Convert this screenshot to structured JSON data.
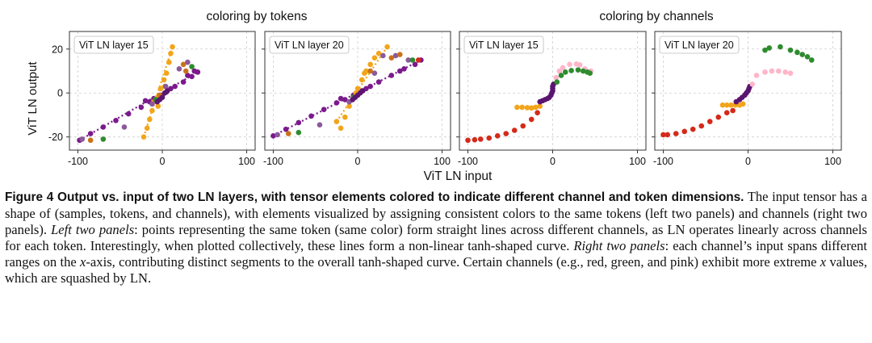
{
  "figure": {
    "group_titles": [
      "coloring by tokens",
      "coloring by channels"
    ],
    "xlabel": "ViT LN input",
    "ylabel": "ViT LN output"
  },
  "chart_data": [
    {
      "type": "scatter",
      "panel_label": "ViT LN layer 15",
      "xlim": [
        -110,
        110
      ],
      "ylim": [
        -26,
        28
      ],
      "xticks": [
        -100,
        0,
        100
      ],
      "yticks": [
        -20,
        0,
        20
      ],
      "grid": true,
      "series": [
        {
          "color": "#7b1a8c",
          "points": [
            [
              -98,
              -21.5
            ],
            [
              -85,
              -18.5
            ],
            [
              -70,
              -15.5
            ],
            [
              -55,
              -12.5
            ],
            [
              -40,
              -9.5
            ],
            [
              -25,
              -6.5
            ],
            [
              -15,
              -4
            ],
            [
              -5,
              -2
            ],
            [
              5,
              0.5
            ],
            [
              15,
              3
            ],
            [
              25,
              5
            ],
            [
              35,
              7.5
            ],
            [
              42,
              9.5
            ],
            [
              -20,
              -3.5
            ],
            [
              -10,
              -2.5
            ],
            [
              0,
              -1
            ],
            [
              10,
              2
            ],
            [
              30,
              8
            ],
            [
              38,
              10
            ]
          ]
        },
        {
          "color": "#f2a51a",
          "points": [
            [
              -18,
              -16
            ],
            [
              -15,
              -12
            ],
            [
              -12,
              -8
            ],
            [
              -10,
              -4
            ],
            [
              -6,
              -2
            ],
            [
              -2,
              2
            ],
            [
              2,
              6
            ],
            [
              5,
              9
            ],
            [
              8,
              14
            ],
            [
              10,
              18
            ],
            [
              12,
              21
            ],
            [
              -22,
              -20
            ],
            [
              -5,
              -6
            ],
            [
              3,
              3
            ]
          ]
        },
        {
          "color": "#8a5a9a",
          "points": [
            [
              -95,
              -21
            ],
            [
              -45,
              -15.5
            ],
            [
              20,
              11
            ],
            [
              30,
              14
            ],
            [
              -12,
              -5
            ],
            [
              4,
              3
            ]
          ]
        },
        {
          "color": "#2e8b2e",
          "points": [
            [
              -70,
              -21
            ],
            [
              35,
              12
            ],
            [
              -8,
              -3
            ]
          ]
        },
        {
          "color": "#c8731a",
          "points": [
            [
              -85,
              -21.5
            ],
            [
              25,
              13
            ],
            [
              -3,
              -1
            ],
            [
              28,
              10
            ]
          ]
        },
        {
          "color": "#5a1570",
          "points": [
            [
              -3,
              -3
            ],
            [
              0,
              -2
            ],
            [
              3,
              0
            ],
            [
              6,
              1
            ],
            [
              -6,
              -4
            ]
          ]
        }
      ]
    },
    {
      "type": "scatter",
      "panel_label": "ViT LN layer 20",
      "xlim": [
        -110,
        110
      ],
      "ylim": [
        -26,
        28
      ],
      "xticks": [
        -100,
        0,
        100
      ],
      "yticks": [
        -20,
        0,
        20
      ],
      "grid": true,
      "series": [
        {
          "color": "#7b1a8c",
          "points": [
            [
              -100,
              -19.5
            ],
            [
              -85,
              -16.5
            ],
            [
              -70,
              -13.5
            ],
            [
              -55,
              -10.5
            ],
            [
              -40,
              -7.5
            ],
            [
              -25,
              -4.5
            ],
            [
              -15,
              -3
            ],
            [
              -5,
              -1
            ],
            [
              5,
              1
            ],
            [
              15,
              3
            ],
            [
              25,
              5
            ],
            [
              40,
              8
            ],
            [
              55,
              11
            ],
            [
              68,
              13
            ],
            [
              75,
              15
            ],
            [
              -20,
              -2.5
            ],
            [
              10,
              2
            ],
            [
              50,
              10
            ]
          ]
        },
        {
          "color": "#f2a51a",
          "points": [
            [
              -20,
              -16
            ],
            [
              -15,
              -11
            ],
            [
              -10,
              -6
            ],
            [
              -5,
              -2
            ],
            [
              0,
              2
            ],
            [
              5,
              6
            ],
            [
              10,
              10
            ],
            [
              15,
              13
            ],
            [
              20,
              16
            ],
            [
              25,
              18
            ],
            [
              35,
              21
            ],
            [
              -25,
              -13
            ],
            [
              -2,
              0
            ],
            [
              8,
              9
            ]
          ]
        },
        {
          "color": "#8a5a9a",
          "points": [
            [
              -95,
              -19
            ],
            [
              -45,
              -14.5
            ],
            [
              30,
              17
            ],
            [
              45,
              17
            ],
            [
              60,
              15
            ],
            [
              -10,
              -4
            ],
            [
              20,
              9
            ]
          ]
        },
        {
          "color": "#2e8b2e",
          "points": [
            [
              -70,
              -18
            ],
            [
              65,
              15
            ],
            [
              -5,
              -2
            ]
          ]
        },
        {
          "color": "#c8731a",
          "points": [
            [
              -82,
              -18.5
            ],
            [
              50,
              17.5
            ],
            [
              15,
              10
            ],
            [
              40,
              16
            ]
          ]
        },
        {
          "color": "#d42a1a",
          "points": [
            [
              72,
              15
            ]
          ]
        },
        {
          "color": "#5a1570",
          "points": [
            [
              -3,
              -2
            ],
            [
              0,
              -1
            ],
            [
              3,
              0
            ],
            [
              6,
              1
            ],
            [
              -6,
              -3
            ]
          ]
        }
      ]
    },
    {
      "type": "scatter",
      "panel_label": "ViT LN layer 15",
      "xlim": [
        -110,
        110
      ],
      "ylim": [
        -26,
        28
      ],
      "xticks": [
        -100,
        0,
        100
      ],
      "yticks": [
        -20,
        0,
        20
      ],
      "grid": true,
      "series": [
        {
          "color": "#d42a1a",
          "points": [
            [
              -100,
              -21.5
            ],
            [
              -92,
              -21.3
            ],
            [
              -85,
              -21
            ],
            [
              -75,
              -20.5
            ],
            [
              -65,
              -19.5
            ],
            [
              -55,
              -18.5
            ],
            [
              -45,
              -17
            ],
            [
              -35,
              -15
            ],
            [
              -25,
              -12
            ],
            [
              -18,
              -9
            ]
          ]
        },
        {
          "color": "#f2a51a",
          "points": [
            [
              -42,
              -6.5
            ],
            [
              -36,
              -6.5
            ],
            [
              -30,
              -6.7
            ],
            [
              -25,
              -6.8
            ],
            [
              -20,
              -6.5
            ],
            [
              -15,
              -6
            ]
          ]
        },
        {
          "color": "#5a1570",
          "points": [
            [
              -15,
              -4
            ],
            [
              -12,
              -3.5
            ],
            [
              -9,
              -3
            ],
            [
              -6,
              -2.5
            ],
            [
              -4,
              -2
            ],
            [
              -2,
              -1
            ],
            [
              -1,
              0
            ],
            [
              0,
              1
            ],
            [
              0,
              2
            ],
            [
              0,
              3
            ],
            [
              1,
              4
            ]
          ]
        },
        {
          "color": "#ffb6c8",
          "points": [
            [
              4,
              7
            ],
            [
              8,
              10
            ],
            [
              12,
              11.5
            ],
            [
              20,
              13
            ],
            [
              28,
              13.2
            ],
            [
              32,
              12.8
            ],
            [
              38,
              11
            ],
            [
              45,
              10
            ]
          ]
        },
        {
          "color": "#2e8b2e",
          "points": [
            [
              5,
              5
            ],
            [
              10,
              8
            ],
            [
              15,
              9.5
            ],
            [
              22,
              10.2
            ],
            [
              30,
              10.5
            ],
            [
              36,
              10
            ],
            [
              41,
              9.5
            ],
            [
              44,
              9
            ]
          ]
        }
      ]
    },
    {
      "type": "scatter",
      "panel_label": "ViT LN layer 20",
      "xlim": [
        -110,
        110
      ],
      "ylim": [
        -26,
        28
      ],
      "xticks": [
        -100,
        0,
        100
      ],
      "yticks": [
        -20,
        0,
        20
      ],
      "grid": true,
      "series": [
        {
          "color": "#d42a1a",
          "points": [
            [
              -100,
              -19
            ],
            [
              -95,
              -19
            ],
            [
              -85,
              -18.5
            ],
            [
              -75,
              -17.5
            ],
            [
              -65,
              -16.5
            ],
            [
              -55,
              -15
            ],
            [
              -45,
              -13
            ],
            [
              -35,
              -11
            ],
            [
              -25,
              -9
            ],
            [
              -18,
              -8
            ]
          ]
        },
        {
          "color": "#f2a51a",
          "points": [
            [
              -30,
              -5.5
            ],
            [
              -25,
              -5.5
            ],
            [
              -20,
              -5.5
            ],
            [
              -15,
              -5.5
            ],
            [
              -10,
              -5.5
            ],
            [
              -6,
              -5
            ]
          ]
        },
        {
          "color": "#5a1570",
          "points": [
            [
              -14,
              -4
            ],
            [
              -10,
              -3
            ],
            [
              -7,
              -2
            ],
            [
              -4,
              -1
            ],
            [
              -2,
              0
            ],
            [
              0,
              1
            ],
            [
              1,
              2
            ],
            [
              2,
              3
            ]
          ]
        },
        {
          "color": "#ffb6c8",
          "points": [
            [
              5,
              4
            ],
            [
              10,
              8
            ],
            [
              20,
              9.5
            ],
            [
              28,
              10
            ],
            [
              36,
              10
            ],
            [
              44,
              9.5
            ],
            [
              50,
              9
            ]
          ]
        },
        {
          "color": "#2e8b2e",
          "points": [
            [
              20,
              19.5
            ],
            [
              25,
              20.5
            ],
            [
              38,
              21
            ],
            [
              50,
              19.5
            ],
            [
              58,
              18.5
            ],
            [
              64,
              17.5
            ],
            [
              70,
              16.5
            ],
            [
              75,
              15
            ]
          ]
        }
      ]
    }
  ],
  "caption": {
    "title": "Figure 4 Output vs. input of two LN layers, with tensor elements colored to indicate different channel and token dimensions.",
    "t1": " The input tensor has a shape of (samples, tokens, and channels), with elements visualized by assigning consistent colors to the same tokens (left two panels) and channels (right two panels). ",
    "label_left": "Left two panels",
    "t2": ": points representing the same token (same color) form straight lines across different channels, as LN operates linearly across channels for each token. Interestingly, when plotted collectively, these lines form a non-linear tanh-shaped curve. ",
    "label_right": "Right two panels",
    "t3": ": each channel’s input spans different ranges on the ",
    "var_x1": "x",
    "t4": "-axis, contributing distinct segments to the overall tanh-shaped curve. Certain channels (e.g., red, green, and pink) exhibit more extreme ",
    "var_x2": "x",
    "t5": " values, which are squashed by LN."
  }
}
